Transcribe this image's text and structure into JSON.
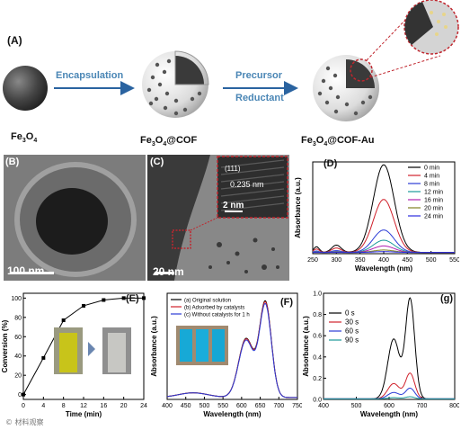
{
  "panel_labels": {
    "A": "(A)",
    "B": "(B)",
    "C": "(C)",
    "D": "(D)",
    "E": "(E)",
    "F": "(F)",
    "G": "(g)"
  },
  "scheme": {
    "step1_label": "Encapsulation",
    "step2_label_line1": "Precursor",
    "step2_label_line2": "Reductant",
    "core": {
      "main": "Fe",
      "sub": "3",
      "tail": "O",
      "sub2": "4"
    },
    "cof": {
      "main": "Fe",
      "sub": "3",
      "tail": "O",
      "sub2": "4",
      "suffix": "@COF"
    },
    "cofau": {
      "main": "Fe",
      "sub": "3",
      "tail": "O",
      "sub2": "4",
      "suffix": "@COF-Au"
    }
  },
  "tem_b": {
    "scale": "100 nm"
  },
  "tem_c": {
    "scale": "20 nm",
    "inset_scale": "2 nm",
    "lattice": "0.235 nm",
    "hkl": "(111)"
  },
  "watermark": "© 材料观察",
  "chart_data": [
    {
      "id": "D",
      "type": "line",
      "xlabel": "Wavelength (nm)",
      "ylabel": "Absorbance (a.u.)",
      "xlim": [
        250,
        550
      ],
      "xticks": [
        250,
        300,
        350,
        400,
        450,
        500,
        550
      ],
      "legend_position": "top-right",
      "peak_x": 400,
      "series": [
        {
          "name": "0 min",
          "color": "#000000",
          "peak": 2.15
        },
        {
          "name": "4 min",
          "color": "#d0202a",
          "peak": 1.3
        },
        {
          "name": "8 min",
          "color": "#2b3bd6",
          "peak": 0.55
        },
        {
          "name": "12 min",
          "color": "#1a9a9a",
          "peak": 0.3
        },
        {
          "name": "16 min",
          "color": "#b020b0",
          "peak": 0.16
        },
        {
          "name": "20 min",
          "color": "#808020",
          "peak": 0.06
        },
        {
          "name": "24 min",
          "color": "#2a2ae0",
          "peak": 0.02
        }
      ]
    },
    {
      "id": "E",
      "type": "line",
      "xlabel": "Time (min)",
      "ylabel": "Conversion (%)",
      "xlim": [
        0,
        24
      ],
      "ylim": [
        -5,
        105
      ],
      "xticks": [
        0,
        4,
        8,
        12,
        16,
        20,
        24
      ],
      "yticks": [
        0,
        20,
        40,
        60,
        80,
        100
      ],
      "x": [
        0,
        4,
        8,
        12,
        16,
        20,
        24
      ],
      "y": [
        0,
        38,
        77,
        92,
        98,
        100,
        100
      ]
    },
    {
      "id": "F",
      "type": "line",
      "xlabel": "Wavelength (nm)",
      "ylabel": "Absorbance (a.u.)",
      "xlim": [
        400,
        750
      ],
      "xticks": [
        400,
        450,
        500,
        550,
        600,
        650,
        700,
        750
      ],
      "legend_position": "top-left",
      "series": [
        {
          "name": "(a) Original solution",
          "color": "#000000",
          "scale": 1.0
        },
        {
          "name": "(b) Adsorbed by catalysts",
          "color": "#d0202a",
          "scale": 0.99
        },
        {
          "name": "(c) Without catalysts for 1 h",
          "color": "#2b3bd6",
          "scale": 0.97
        }
      ]
    },
    {
      "id": "G",
      "type": "line",
      "xlabel": "Wavelength (nm)",
      "ylabel": "Absorbance (a.u.)",
      "xlim": [
        400,
        800
      ],
      "ylim": [
        0,
        1.0
      ],
      "xticks": [
        400,
        500,
        600,
        700,
        800
      ],
      "yticks": [
        0.0,
        0.2,
        0.4,
        0.6,
        0.8,
        1.0
      ],
      "legend_position": "top-left",
      "series": [
        {
          "name": "0 s",
          "color": "#000000",
          "peak": 0.94
        },
        {
          "name": "30 s",
          "color": "#d0202a",
          "peak": 0.24
        },
        {
          "name": "60 s",
          "color": "#2b3bd6",
          "peak": 0.1
        },
        {
          "name": "90 s",
          "color": "#1a9a9a",
          "peak": 0.02
        }
      ]
    }
  ]
}
